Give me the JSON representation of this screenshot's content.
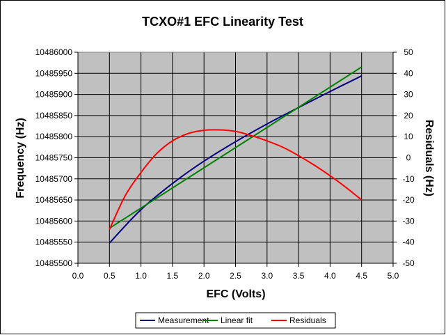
{
  "chart_data": {
    "type": "line",
    "title": "TCXO#1 EFC Linearity Test",
    "xlabel": "EFC (Volts)",
    "ylabel": "Frequency (Hz)",
    "y2label": "Residuals (Hz)",
    "xlim": [
      0,
      5
    ],
    "ylim": [
      10485500,
      10486000
    ],
    "y2lim": [
      -50,
      50
    ],
    "x_ticks": [
      "0.0",
      "0.5",
      "1.0",
      "1.5",
      "2.0",
      "2.5",
      "3.0",
      "3.5",
      "4.0",
      "4.5",
      "5.0"
    ],
    "y_ticks": [
      "10486000",
      "10485950",
      "10485900",
      "10485850",
      "10485800",
      "10485750",
      "10485700",
      "10485650",
      "10485600",
      "10485550",
      "10485500"
    ],
    "y2_ticks": [
      "50",
      "40",
      "30",
      "20",
      "10",
      "0",
      "-10",
      "-20",
      "-30",
      "-40",
      "-50"
    ],
    "grid": true,
    "plot_background": "#c0c0c0",
    "legend_position": "bottom",
    "series": [
      {
        "name": "Measurement",
        "axis": "left",
        "color": "#000080",
        "x": [
          0.5,
          1.0,
          1.5,
          2.0,
          2.5,
          3.0,
          3.5,
          4.0,
          4.5
        ],
        "y": [
          10485548,
          10485627,
          10485689,
          10485742,
          10485788,
          10485830,
          10485869,
          10485907,
          10485944
        ]
      },
      {
        "name": "Linear fit",
        "axis": "left",
        "color": "#008000",
        "x": [
          0.5,
          4.5
        ],
        "y": [
          10485583,
          10485965
        ]
      },
      {
        "name": "Residuals",
        "axis": "right",
        "color": "#ff0000",
        "x": [
          0.5,
          0.75,
          1.0,
          1.25,
          1.5,
          1.75,
          2.0,
          2.25,
          2.5,
          2.75,
          3.0,
          3.25,
          3.5,
          3.75,
          4.0,
          4.25,
          4.5
        ],
        "y": [
          -34,
          -18,
          -7,
          2,
          8,
          11.5,
          13,
          13.2,
          12.5,
          10.5,
          8,
          5,
          1,
          -3.5,
          -8.5,
          -14,
          -20
        ]
      }
    ]
  }
}
